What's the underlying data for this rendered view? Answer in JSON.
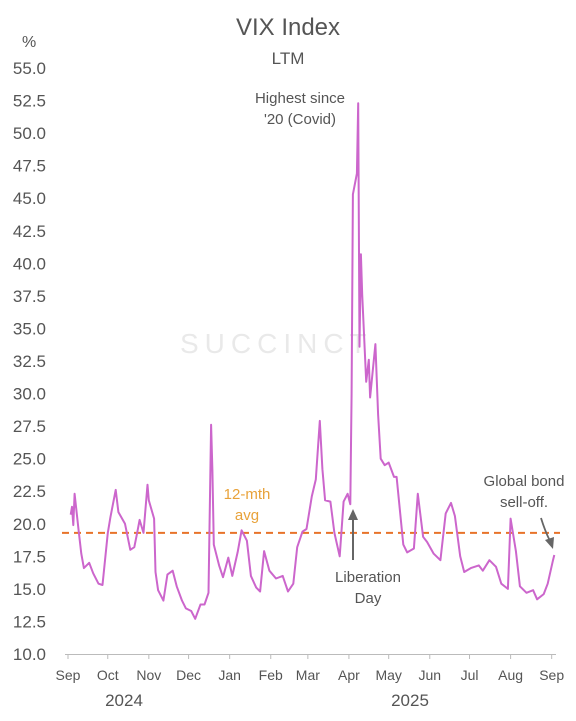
{
  "chart_data": {
    "type": "line",
    "title": "VIX Index",
    "subtitle": "LTM",
    "ylabel": "%",
    "ylim": [
      10.0,
      55.0
    ],
    "yticks": [
      "10.0",
      "12.5",
      "15.0",
      "17.5",
      "20.0",
      "22.5",
      "25.0",
      "27.5",
      "30.0",
      "32.5",
      "35.0",
      "37.5",
      "40.0",
      "42.5",
      "45.0",
      "47.5",
      "50.0",
      "52.5",
      "55.0"
    ],
    "xticks": [
      "Sep",
      "Oct",
      "Nov",
      "Dec",
      "Jan",
      "Feb",
      "Mar",
      "Apr",
      "May",
      "Jun",
      "Jul",
      "Aug",
      "Sep"
    ],
    "years": [
      "2024",
      "2025"
    ],
    "grid": false,
    "series": [
      {
        "color": "#cc66cc",
        "x": [
          "2024-09-03",
          "2024-09-04",
          "2024-09-05",
          "2024-09-06",
          "2024-09-09",
          "2024-09-11",
          "2024-09-13",
          "2024-09-17",
          "2024-09-20",
          "2024-09-24",
          "2024-09-27",
          "2024-10-01",
          "2024-10-03",
          "2024-10-07",
          "2024-10-09",
          "2024-10-14",
          "2024-10-18",
          "2024-10-21",
          "2024-10-23",
          "2024-10-25",
          "2024-10-28",
          "2024-10-31",
          "2024-11-01",
          "2024-11-05",
          "2024-11-06",
          "2024-11-08",
          "2024-11-12",
          "2024-11-15",
          "2024-11-19",
          "2024-11-22",
          "2024-11-26",
          "2024-11-29",
          "2024-12-03",
          "2024-12-06",
          "2024-12-10",
          "2024-12-13",
          "2024-12-16",
          "2024-12-18",
          "2024-12-19",
          "2024-12-20",
          "2024-12-24",
          "2024-12-27",
          "2024-12-31",
          "2025-01-03",
          "2025-01-07",
          "2025-01-10",
          "2025-01-14",
          "2025-01-17",
          "2025-01-21",
          "2025-01-24",
          "2025-01-27",
          "2025-01-31",
          "2025-02-05",
          "2025-02-10",
          "2025-02-14",
          "2025-02-18",
          "2025-02-21",
          "2025-02-25",
          "2025-02-28",
          "2025-03-04",
          "2025-03-07",
          "2025-03-10",
          "2025-03-12",
          "2025-03-14",
          "2025-03-18",
          "2025-03-21",
          "2025-03-25",
          "2025-03-28",
          "2025-03-31",
          "2025-04-02",
          "2025-04-03",
          "2025-04-04",
          "2025-04-07",
          "2025-04-08",
          "2025-04-09",
          "2025-04-10",
          "2025-04-11",
          "2025-04-14",
          "2025-04-16",
          "2025-04-17",
          "2025-04-21",
          "2025-04-23",
          "2025-04-25",
          "2025-04-28",
          "2025-05-01",
          "2025-05-05",
          "2025-05-07",
          "2025-05-12",
          "2025-05-15",
          "2025-05-20",
          "2025-05-23",
          "2025-05-27",
          "2025-05-30",
          "2025-06-04",
          "2025-06-09",
          "2025-06-13",
          "2025-06-17",
          "2025-06-20",
          "2025-06-24",
          "2025-06-27",
          "2025-07-02",
          "2025-07-08",
          "2025-07-11",
          "2025-07-16",
          "2025-07-21",
          "2025-07-25",
          "2025-07-30",
          "2025-08-01",
          "2025-08-05",
          "2025-08-08",
          "2025-08-13",
          "2025-08-18",
          "2025-08-21",
          "2025-08-26",
          "2025-08-29",
          "2025-09-02",
          "2025-09-03"
        ],
        "values": [
          20.7,
          21.3,
          19.9,
          22.3,
          19.5,
          17.7,
          16.6,
          17.0,
          16.2,
          15.4,
          15.3,
          19.3,
          20.5,
          22.6,
          20.9,
          20.0,
          18.0,
          18.2,
          19.2,
          20.3,
          19.3,
          23.0,
          21.8,
          20.4,
          16.3,
          14.9,
          14.1,
          16.1,
          16.4,
          15.2,
          14.1,
          13.5,
          13.3,
          12.7,
          13.8,
          13.8,
          14.7,
          27.6,
          24.1,
          18.4,
          16.8,
          15.9,
          17.4,
          16.0,
          17.8,
          19.5,
          18.7,
          16.0,
          15.1,
          14.8,
          17.9,
          16.4,
          15.8,
          16.0,
          14.8,
          15.4,
          18.2,
          19.4,
          19.6,
          22.1,
          23.4,
          27.9,
          24.2,
          21.8,
          21.7,
          19.3,
          17.5,
          21.7,
          22.3,
          21.5,
          30.0,
          45.3,
          46.9,
          52.3,
          33.6,
          40.7,
          37.6,
          30.9,
          32.6,
          29.7,
          33.8,
          28.4,
          25.0,
          24.5,
          24.7,
          23.6,
          23.6,
          18.4,
          17.8,
          18.1,
          22.3,
          19.0,
          18.6,
          17.7,
          17.2,
          20.8,
          21.6,
          20.6,
          17.5,
          16.3,
          16.6,
          16.8,
          16.4,
          17.2,
          16.7,
          15.4,
          15.0,
          20.4,
          17.9,
          15.2,
          14.7,
          14.9,
          14.2,
          14.6,
          15.4,
          17.2,
          17.6
        ]
      },
      {
        "name": "12-mth avg",
        "color": "#e8732a",
        "style": "dashed",
        "values": [
          19.3
        ]
      }
    ],
    "annotations": [
      {
        "text": [
          "Highest since",
          "'20 (Covid)"
        ]
      },
      {
        "text": [
          "Liberation",
          "Day"
        ]
      },
      {
        "text": [
          "Global bond",
          "sell-off."
        ]
      },
      {
        "text": [
          "12-mth",
          "avg"
        ]
      }
    ]
  },
  "watermark": "SUCCINCT"
}
